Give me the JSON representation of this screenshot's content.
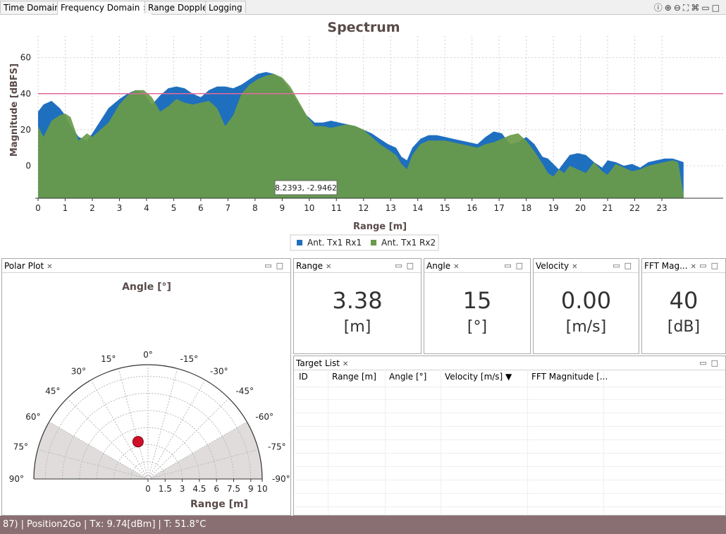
{
  "top_tabs": [
    {
      "label": "Time Domain"
    },
    {
      "label": "Frequency Domain",
      "active": true
    },
    {
      "label": "Range Doppler"
    },
    {
      "label": "Logging"
    }
  ],
  "toolbar_icons": [
    "info-icon",
    "zoom-in-icon",
    "zoom-out-icon",
    "fit-icon",
    "reset-icon",
    "minimize-icon",
    "maximize-icon"
  ],
  "spectrum": {
    "tooltip": "8.2393, -2.9462",
    "chart_data": {
      "type": "area",
      "title": "Spectrum",
      "xlabel": "Range [m]",
      "ylabel": "Magnitude [dBFS]",
      "xlim": [
        0,
        24
      ],
      "ylim": [
        -18,
        72
      ],
      "xticks": [
        "0",
        "1",
        "2",
        "3",
        "4",
        "5",
        "6",
        "7",
        "8",
        "9",
        "10",
        "11",
        "12",
        "13",
        "14",
        "15",
        "16",
        "17",
        "18",
        "19",
        "20",
        "21",
        "22",
        "23"
      ],
      "yticks": [
        "0",
        "20",
        "40",
        "60"
      ],
      "threshold": 40,
      "threshold_color": "#e0699a",
      "legend_position": "bottom",
      "series": [
        {
          "name": "Ant. Tx1 Rx1",
          "color": "#1f6fbf",
          "x": [
            0,
            0.2,
            0.5,
            0.8,
            1.0,
            1.2,
            1.5,
            1.8,
            2.0,
            2.3,
            2.6,
            3.0,
            3.3,
            3.6,
            3.9,
            4.2,
            4.5,
            4.8,
            5.1,
            5.4,
            5.7,
            6.0,
            6.3,
            6.6,
            6.9,
            7.2,
            7.5,
            7.8,
            8.1,
            8.4,
            8.7,
            9.0,
            9.3,
            9.6,
            9.9,
            10.2,
            10.5,
            10.8,
            11.1,
            11.4,
            11.7,
            12.0,
            12.3,
            12.6,
            12.9,
            13.2,
            13.4,
            13.6,
            13.8,
            14.1,
            14.4,
            14.7,
            15.0,
            15.3,
            15.6,
            15.9,
            16.2,
            16.5,
            16.8,
            17.1,
            17.4,
            17.7,
            18.0,
            18.3,
            18.6,
            18.8,
            19.0,
            19.2,
            19.4,
            19.6,
            19.9,
            20.2,
            20.5,
            20.8,
            21.0,
            21.3,
            21.6,
            21.9,
            22.2,
            22.5,
            22.8,
            23.1,
            23.4,
            23.6,
            23.8
          ],
          "values": [
            30,
            34,
            36,
            32,
            28,
            22,
            16,
            14,
            18,
            25,
            32,
            37,
            40,
            42,
            40,
            34,
            39,
            43,
            44,
            43,
            40,
            38,
            42,
            44,
            44,
            43,
            45,
            48,
            51,
            52,
            51,
            48,
            42,
            35,
            28,
            24,
            24,
            25,
            24,
            23,
            22,
            20,
            18,
            15,
            12,
            10,
            5,
            3,
            10,
            15,
            17,
            17,
            16,
            15,
            14,
            13,
            12,
            16,
            19,
            18,
            12,
            13,
            16,
            12,
            5,
            4,
            1,
            -2,
            2,
            6,
            7,
            6,
            2,
            -1,
            3,
            2,
            0,
            1,
            -1,
            2,
            3,
            4,
            4,
            3,
            2
          ]
        },
        {
          "name": "Ant. Tx1 Rx2",
          "color": "#6a9b48",
          "x": [
            0,
            0.2,
            0.5,
            0.8,
            1.0,
            1.2,
            1.5,
            1.8,
            2.0,
            2.3,
            2.6,
            3.0,
            3.3,
            3.6,
            3.9,
            4.2,
            4.5,
            4.8,
            5.1,
            5.4,
            5.7,
            6.0,
            6.3,
            6.6,
            6.9,
            7.2,
            7.5,
            7.8,
            8.1,
            8.4,
            8.7,
            9.0,
            9.3,
            9.6,
            9.9,
            10.2,
            10.5,
            10.8,
            11.1,
            11.4,
            11.7,
            12.0,
            12.3,
            12.6,
            12.9,
            13.2,
            13.4,
            13.6,
            13.8,
            14.1,
            14.4,
            14.7,
            15.0,
            15.3,
            15.6,
            15.9,
            16.2,
            16.5,
            16.8,
            17.1,
            17.4,
            17.7,
            18.0,
            18.3,
            18.6,
            18.8,
            19.0,
            19.2,
            19.4,
            19.6,
            19.9,
            20.2,
            20.5,
            20.8,
            21.0,
            21.3,
            21.6,
            21.9,
            22.2,
            22.5,
            22.8,
            23.1,
            23.4,
            23.6,
            23.8
          ],
          "values": [
            22,
            16,
            25,
            28,
            29,
            27,
            14,
            18,
            16,
            20,
            24,
            34,
            39,
            42,
            42,
            38,
            30,
            33,
            37,
            35,
            34,
            35,
            36,
            32,
            22,
            28,
            40,
            45,
            48,
            50,
            51,
            49,
            44,
            36,
            28,
            22,
            22,
            21,
            22,
            23,
            22,
            20,
            16,
            12,
            9,
            6,
            1,
            -2,
            6,
            12,
            14,
            14,
            14,
            13,
            12,
            11,
            10,
            12,
            13,
            15,
            17,
            18,
            14,
            8,
            1,
            -4,
            -6,
            -2,
            -4,
            0,
            -2,
            -4,
            2,
            -3,
            -5,
            1,
            -1,
            -3,
            -2,
            0,
            1,
            2,
            3,
            2,
            -16
          ]
        }
      ]
    }
  },
  "polar": {
    "tab": "Polar Plot",
    "chart_data": {
      "type": "scatter",
      "title": "Angle [°]",
      "xlabel": "Range [m]",
      "angle_ticks": [
        "0°",
        "15°",
        "-15°",
        "30°",
        "-30°",
        "45°",
        "-45°",
        "60°",
        "-60°",
        "75°",
        "-75°",
        "90°",
        "-90°"
      ],
      "range_ticks": [
        "0",
        "1.5",
        "3",
        "4.5",
        "6",
        "7.5",
        "9",
        "10"
      ],
      "range_max": 10,
      "field_of_view_deg": [
        -60,
        60
      ],
      "targets": [
        {
          "range_m": 3.38,
          "angle_deg": 15,
          "color": "#d0102a"
        }
      ]
    }
  },
  "range_card": {
    "tab": "Range",
    "value": "3.38",
    "unit": "[m]"
  },
  "angle_card": {
    "tab": "Angle",
    "value": "15",
    "unit": "[°]"
  },
  "velocity_card": {
    "tab": "Velocity",
    "value": "0.00",
    "unit": "[m/s]"
  },
  "fft_card": {
    "tab": "FFT Mag...",
    "value": "40",
    "unit": "[dB]"
  },
  "target_list": {
    "tab": "Target List",
    "columns": [
      "ID",
      "Range [m]",
      "Angle [°]",
      "Velocity [m/s] ▼",
      "FFT Magnitude [..."
    ],
    "rows": []
  },
  "statusbar": {
    "items": [
      "87)",
      "Position2Go",
      "Tx: 9.74[dBm]",
      "T: 51.8°C"
    ]
  }
}
